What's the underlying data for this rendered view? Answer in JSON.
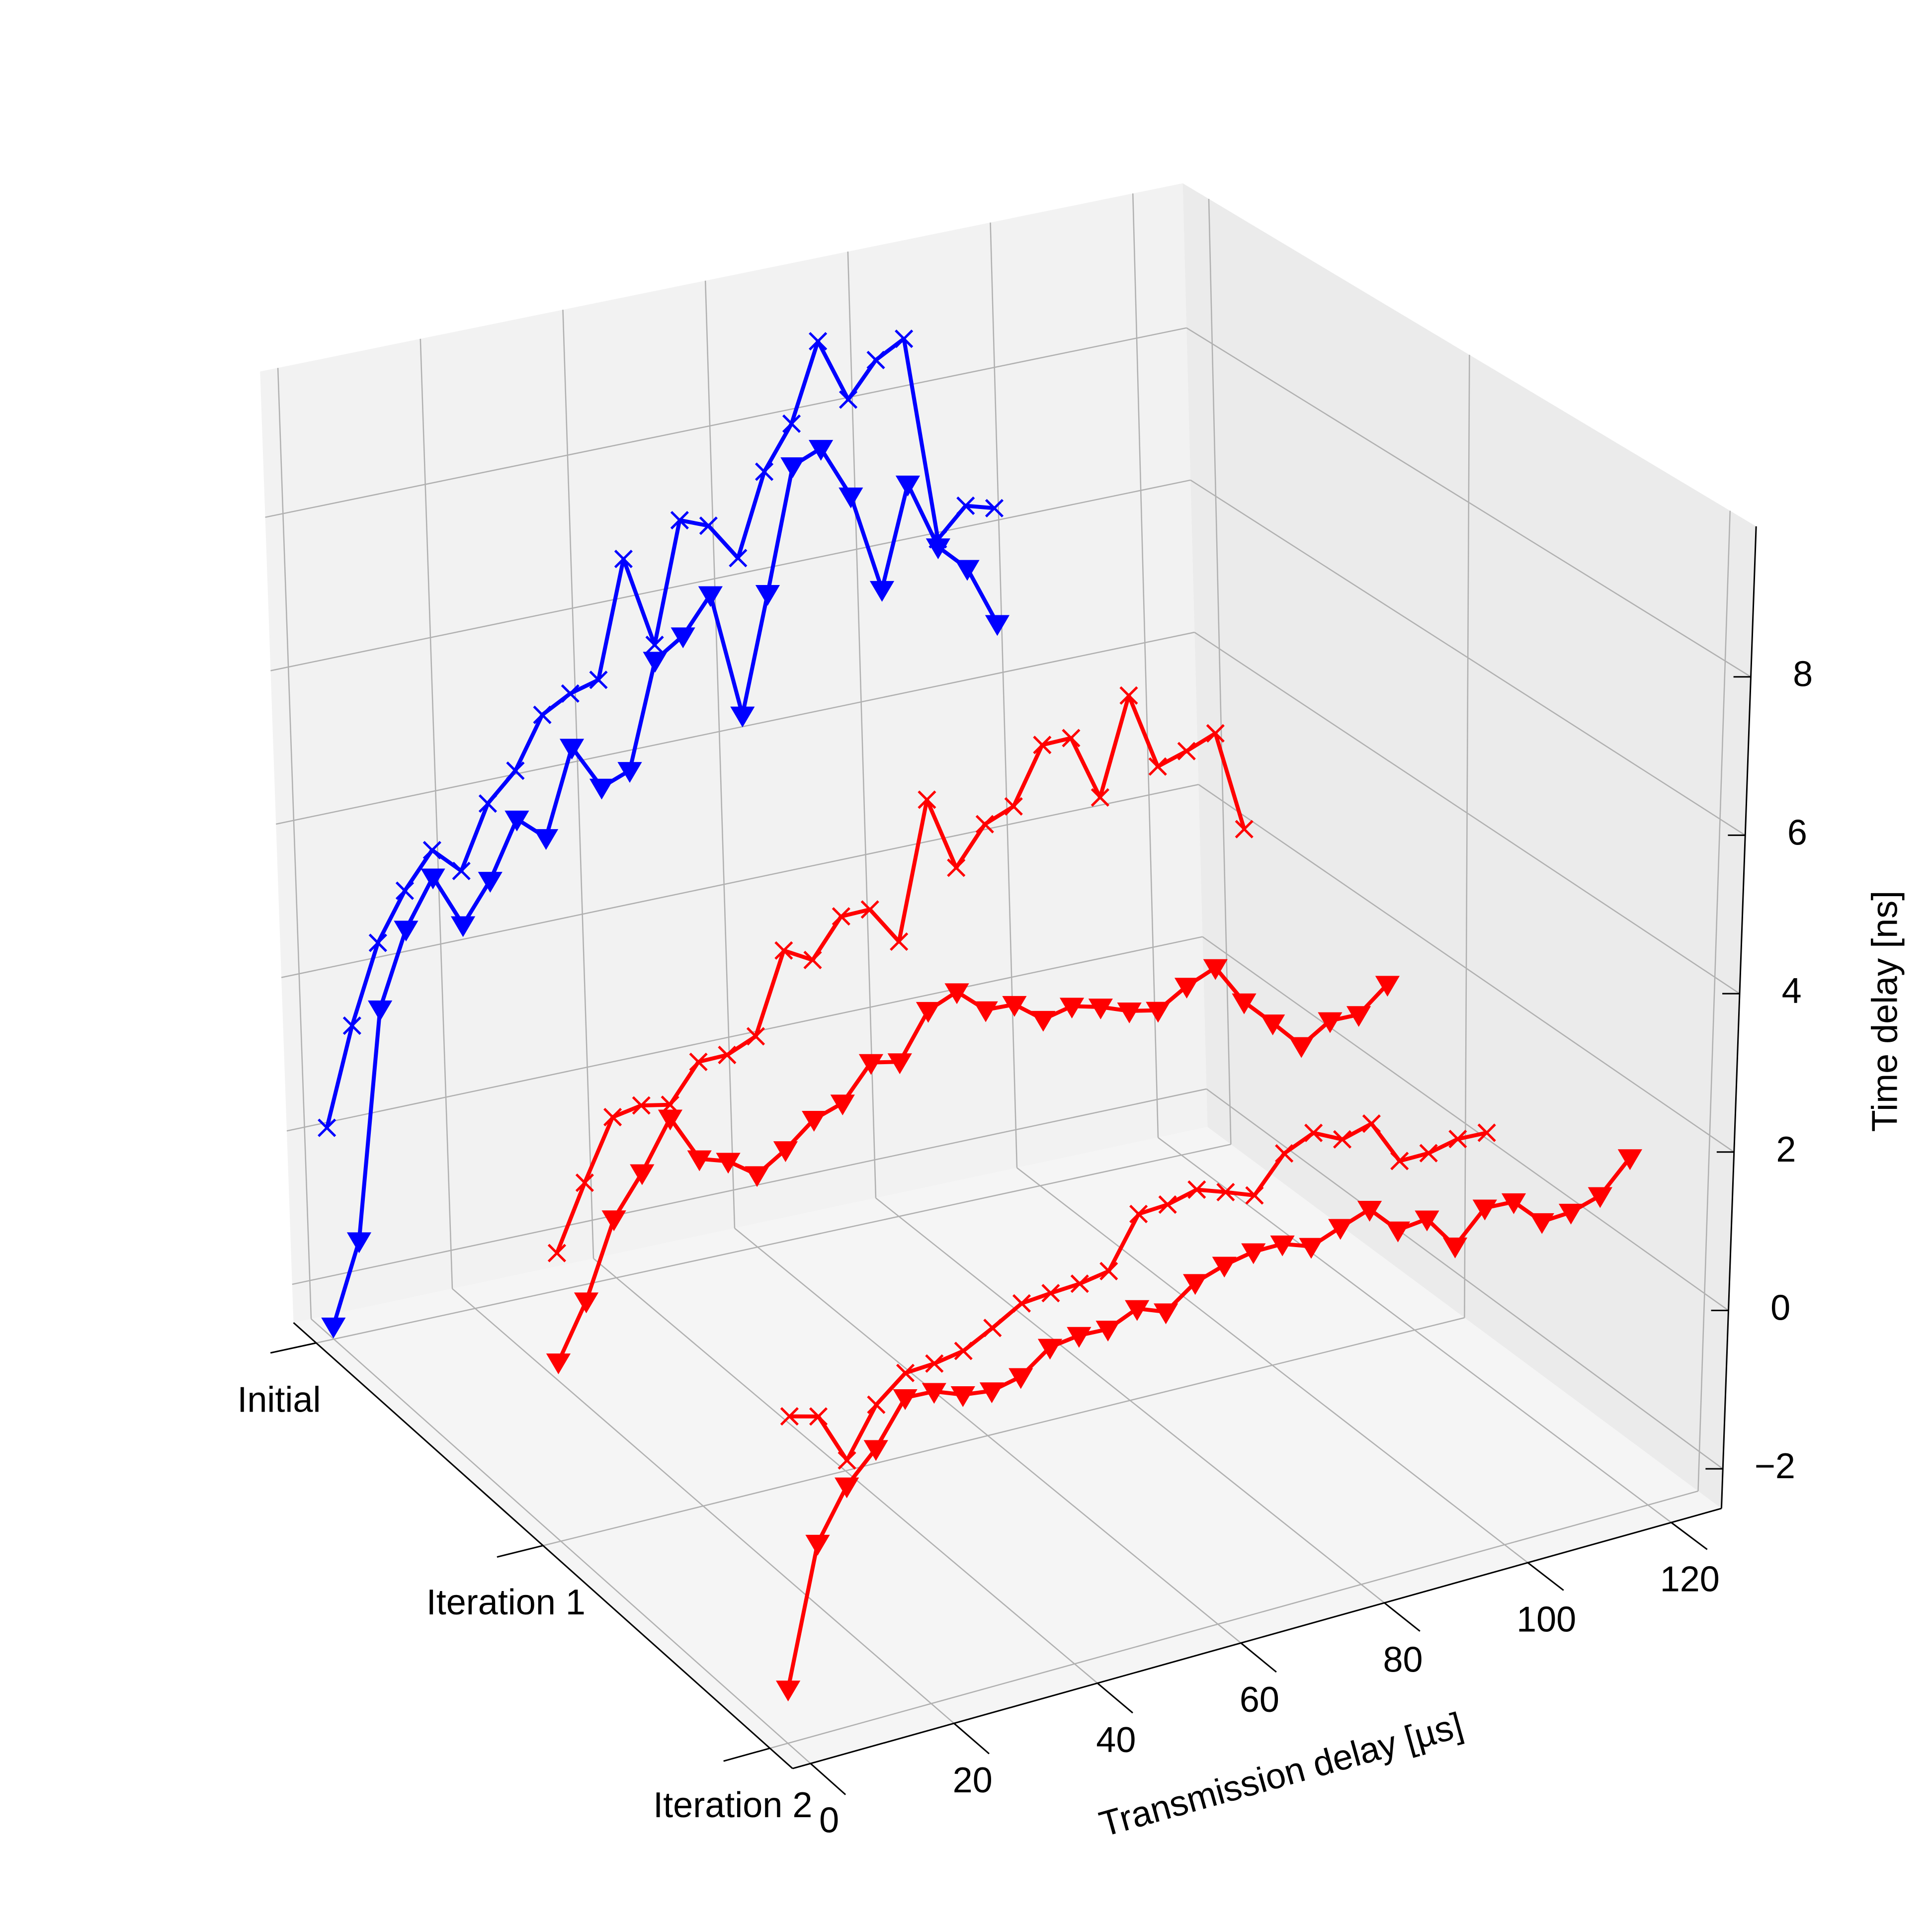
{
  "chart_data": {
    "type": "line3d",
    "x_label": "Transmission delay [µs]",
    "z_label": "Time delay [ns]",
    "xlim": [
      -2.5,
      127
    ],
    "xticks": [
      0,
      20,
      40,
      60,
      80,
      100,
      120
    ],
    "categories": [
      "Initial",
      "Iteration 1",
      "Iteration 2"
    ],
    "ylim": [
      -0.1,
      2.1
    ],
    "zlim": [
      -2.5,
      9.9
    ],
    "zticks": [
      {
        "value": -2,
        "label": "−2"
      },
      0,
      2,
      4,
      6,
      8
    ],
    "grid": true,
    "series": [
      {
        "y": 0,
        "color": "#0000ff",
        "marker": "x",
        "x": [
          0,
          4,
          8,
          12,
          16,
          20,
          24,
          28,
          32,
          36,
          40,
          44,
          48,
          52,
          56,
          60,
          64,
          68,
          72,
          76,
          80,
          84,
          88,
          92,
          96
        ],
        "values": [
          0.25,
          1.5,
          2.5,
          3.1,
          3.55,
          3.2,
          4.0,
          4.35,
          5.0,
          5.2,
          5.3,
          6.8,
          5.6,
          7.15,
          7.0,
          6.5,
          7.55,
          8.1,
          9.1,
          8.26,
          8.7,
          8.9,
          6.2,
          6.56,
          6.45
        ]
      },
      {
        "y": 0,
        "color": "#0000ff",
        "marker": "v",
        "x": [
          0,
          4,
          8,
          12,
          16,
          20,
          24,
          28,
          32,
          36,
          40,
          44,
          48,
          52,
          56,
          60,
          64,
          68,
          72,
          76,
          80,
          84,
          88,
          92,
          96
        ],
        "values": [
          -2.33,
          -1.3,
          1.64,
          2.6,
          3.2,
          2.5,
          3.0,
          3.72,
          3.4,
          4.5,
          3.9,
          4.04,
          5.4,
          5.64,
          6.1,
          4.45,
          5.96,
          7.55,
          7.7,
          7.0,
          5.7,
          7.0,
          6.1,
          5.74,
          4.94
        ]
      },
      {
        "y": 1,
        "color": "#ff0000",
        "marker": "x",
        "x": [
          0,
          4,
          8,
          12,
          16,
          20,
          24,
          28,
          32,
          36,
          40,
          44,
          48,
          52,
          56,
          60,
          64,
          68,
          72,
          76,
          80,
          84,
          88,
          92,
          96
        ],
        "values": [
          1.18,
          1.99,
          2.74,
          2.8,
          2.72,
          3.18,
          3.18,
          3.33,
          4.34,
          4.13,
          4.6,
          4.6,
          4.1,
          5.83,
          4.87,
          5.34,
          5.48,
          6.18,
          6.18,
          5.33,
          6.55,
          5.55,
          5.66,
          5.8,
          4.48
        ]
      },
      {
        "y": 1,
        "color": "#ff0000",
        "marker": "v",
        "x": [
          0,
          4,
          8,
          12,
          16,
          20,
          24,
          28,
          32,
          36,
          40,
          44,
          48,
          52,
          56,
          60,
          64,
          68,
          72,
          76,
          80,
          84,
          88,
          92,
          96,
          100,
          104,
          108,
          112,
          116
        ],
        "values": [
          -0.21,
          0.48,
          1.44,
          1.94,
          2.55,
          1.94,
          1.82,
          1.56,
          1.79,
          2.09,
          2.21,
          2.64,
          2.56,
          3.13,
          3.28,
          2.96,
          2.94,
          2.66,
          2.74,
          2.64,
          2.5,
          2.42,
          2.64,
          2.79,
          2.26,
          1.9,
          1.52,
          1.75,
          1.74,
          2.04
        ]
      },
      {
        "y": 2,
        "color": "#ff0000",
        "marker": "x",
        "x": [
          0,
          4,
          8,
          12,
          16,
          20,
          24,
          28,
          32,
          36,
          40,
          44,
          48,
          52,
          56,
          60,
          64,
          68,
          72,
          76,
          80,
          84,
          88,
          92,
          96
        ],
        "values": [
          1.6,
          1.5,
          0.85,
          1.45,
          1.75,
          1.77,
          1.83,
          2.02,
          2.23,
          2.26,
          2.28,
          2.34,
          2.96,
          2.98,
          3.07,
          2.94,
          2.8,
          3.23,
          3.39,
          3.21,
          3.31,
          2.74,
          2.74,
          2.82,
          2.8
        ]
      },
      {
        "y": 2,
        "color": "#ff0000",
        "marker": "v",
        "x": [
          0,
          4,
          8,
          12,
          16,
          20,
          24,
          28,
          32,
          36,
          40,
          44,
          48,
          52,
          56,
          60,
          64,
          68,
          72,
          76,
          80,
          84,
          88,
          92,
          96,
          100,
          104,
          108,
          112,
          116
        ],
        "values": [
          -1.82,
          -0.09,
          0.53,
          0.9,
          1.44,
          1.42,
          1.28,
          1.23,
          1.31,
          1.58,
          1.63,
          1.61,
          1.77,
          1.63,
          1.9,
          2.02,
          2.09,
          2.09,
          1.96,
          2.1,
          2.23,
          1.87,
          1.91,
          1.47,
          1.85,
          1.83,
          1.48,
          1.5,
          1.61,
          1.99
        ]
      }
    ]
  }
}
